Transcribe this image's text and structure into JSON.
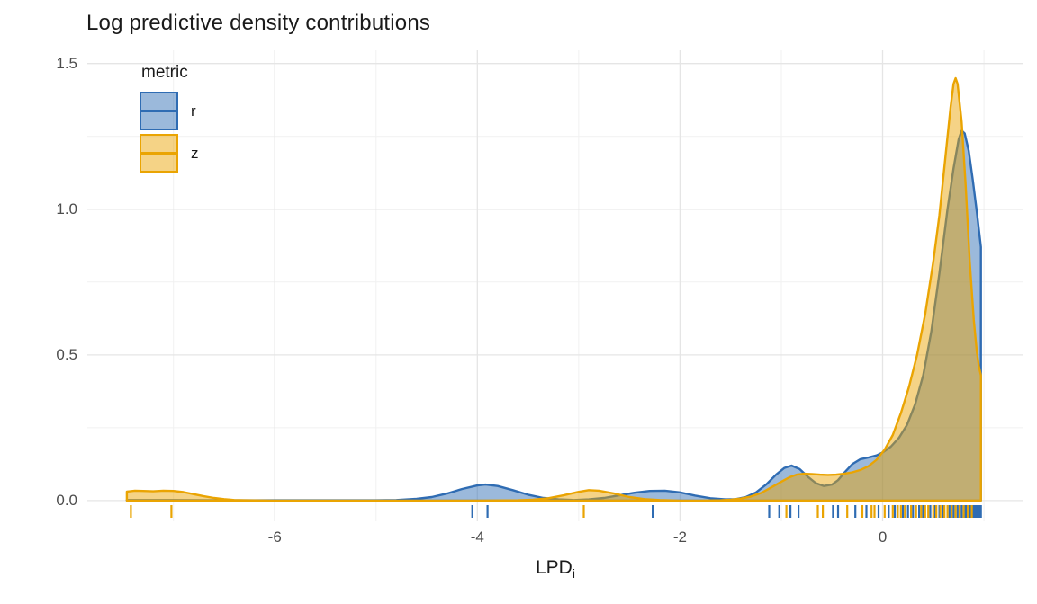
{
  "title": "Log predictive density contributions",
  "legend": {
    "title": "metric"
  },
  "x_axis_title": {
    "main": "LPD",
    "sub": "i"
  },
  "colors": {
    "background": "#ffffff",
    "title_text": "#1a1a1a",
    "axis_text": "#4d4d4d",
    "grid_major": "#e5e5e5",
    "grid_minor": "#f1f1f1",
    "series_r": "#2f6cb3",
    "series_z": "#eaa402"
  },
  "chart_data": {
    "type": "area",
    "subtype": "kernel-density-with-rug",
    "title": "Log predictive density contributions",
    "xlabel": "LPD_i",
    "ylabel": "",
    "legend_title": "metric",
    "legend_position": "top-left-inside",
    "grid": "on",
    "xlim": [
      -7.85,
      1.39
    ],
    "ylim": [
      -0.0712,
      1.5455
    ],
    "x_major_ticks": [
      -6,
      -4,
      -2,
      0
    ],
    "x_tick_labels": [
      "-6",
      "-4",
      "-2",
      "0"
    ],
    "x_minor_gridlines": [
      -7,
      -5,
      -3,
      -1,
      1
    ],
    "y_major_ticks": [
      0,
      0.5,
      1.0,
      1.5
    ],
    "y_tick_labels": [
      "0.0",
      "0.5",
      "1.0",
      "1.5"
    ],
    "y_minor_gridlines": [
      0.25,
      0.75,
      1.25
    ],
    "fill_opacity": 0.48,
    "stroke_width": 2.4,
    "series": [
      {
        "name": "r",
        "color": "#2f6cb3",
        "points": [
          [
            -7.46,
            0.002
          ],
          [
            -7.2,
            0.002
          ],
          [
            -7.0,
            0.002
          ],
          [
            -6.5,
            0.001
          ],
          [
            -6.0,
            0.001
          ],
          [
            -5.5,
            0.001
          ],
          [
            -5.0,
            0.001
          ],
          [
            -4.8,
            0.002
          ],
          [
            -4.6,
            0.006
          ],
          [
            -4.45,
            0.012
          ],
          [
            -4.3,
            0.024
          ],
          [
            -4.15,
            0.04
          ],
          [
            -4.0,
            0.052
          ],
          [
            -3.92,
            0.055
          ],
          [
            -3.8,
            0.05
          ],
          [
            -3.65,
            0.036
          ],
          [
            -3.5,
            0.02
          ],
          [
            -3.35,
            0.009
          ],
          [
            -3.2,
            0.004
          ],
          [
            -3.05,
            0.002
          ],
          [
            -2.9,
            0.004
          ],
          [
            -2.75,
            0.009
          ],
          [
            -2.6,
            0.018
          ],
          [
            -2.45,
            0.027
          ],
          [
            -2.3,
            0.033
          ],
          [
            -2.15,
            0.034
          ],
          [
            -2.0,
            0.028
          ],
          [
            -1.85,
            0.017
          ],
          [
            -1.7,
            0.008
          ],
          [
            -1.55,
            0.004
          ],
          [
            -1.45,
            0.005
          ],
          [
            -1.35,
            0.012
          ],
          [
            -1.25,
            0.028
          ],
          [
            -1.15,
            0.055
          ],
          [
            -1.05,
            0.09
          ],
          [
            -0.97,
            0.112
          ],
          [
            -0.9,
            0.12
          ],
          [
            -0.82,
            0.108
          ],
          [
            -0.74,
            0.082
          ],
          [
            -0.66,
            0.06
          ],
          [
            -0.58,
            0.05
          ],
          [
            -0.5,
            0.055
          ],
          [
            -0.44,
            0.07
          ],
          [
            -0.38,
            0.095
          ],
          [
            -0.3,
            0.125
          ],
          [
            -0.22,
            0.142
          ],
          [
            -0.14,
            0.148
          ],
          [
            -0.06,
            0.155
          ],
          [
            0.0,
            0.165
          ],
          [
            0.08,
            0.185
          ],
          [
            0.16,
            0.215
          ],
          [
            0.24,
            0.26
          ],
          [
            0.32,
            0.33
          ],
          [
            0.4,
            0.43
          ],
          [
            0.48,
            0.58
          ],
          [
            0.56,
            0.78
          ],
          [
            0.64,
            1.0
          ],
          [
            0.7,
            1.14
          ],
          [
            0.75,
            1.24
          ],
          [
            0.78,
            1.27
          ],
          [
            0.81,
            1.26
          ],
          [
            0.85,
            1.2
          ],
          [
            0.89,
            1.1
          ],
          [
            0.93,
            0.99
          ],
          [
            0.97,
            0.87
          ]
        ],
        "rug": [
          -4.05,
          -3.9,
          -2.27,
          -1.12,
          -1.02,
          -0.91,
          -0.83,
          -0.49,
          -0.44,
          -0.27,
          -0.16,
          -0.04,
          0.06,
          0.12,
          0.2,
          0.25,
          0.3,
          0.36,
          0.4,
          0.47,
          0.52,
          0.56,
          0.6,
          0.66,
          0.7,
          0.74,
          0.78,
          0.815,
          0.83,
          0.845,
          0.86,
          0.875,
          0.89,
          0.9,
          0.91,
          0.92,
          0.93,
          0.94,
          0.95,
          0.96,
          0.97
        ]
      },
      {
        "name": "z",
        "color": "#eaa402",
        "points": [
          [
            -7.46,
            0.031
          ],
          [
            -7.38,
            0.034
          ],
          [
            -7.3,
            0.033
          ],
          [
            -7.2,
            0.032
          ],
          [
            -7.1,
            0.034
          ],
          [
            -7.0,
            0.033
          ],
          [
            -6.9,
            0.029
          ],
          [
            -6.8,
            0.022
          ],
          [
            -6.7,
            0.015
          ],
          [
            -6.6,
            0.009
          ],
          [
            -6.5,
            0.005
          ],
          [
            -6.4,
            0.002
          ],
          [
            -6.3,
            0.001
          ],
          [
            -6.0,
            0.0
          ],
          [
            -5.0,
            0.0
          ],
          [
            -4.0,
            0.0
          ],
          [
            -3.6,
            0.001
          ],
          [
            -3.45,
            0.003
          ],
          [
            -3.3,
            0.008
          ],
          [
            -3.15,
            0.018
          ],
          [
            -3.0,
            0.03
          ],
          [
            -2.9,
            0.036
          ],
          [
            -2.8,
            0.034
          ],
          [
            -2.65,
            0.024
          ],
          [
            -2.5,
            0.012
          ],
          [
            -2.35,
            0.005
          ],
          [
            -2.2,
            0.002
          ],
          [
            -2.0,
            0.0
          ],
          [
            -1.8,
            0.0
          ],
          [
            -1.6,
            0.001
          ],
          [
            -1.5,
            0.003
          ],
          [
            -1.4,
            0.007
          ],
          [
            -1.3,
            0.014
          ],
          [
            -1.2,
            0.026
          ],
          [
            -1.1,
            0.045
          ],
          [
            -1.0,
            0.065
          ],
          [
            -0.92,
            0.08
          ],
          [
            -0.85,
            0.089
          ],
          [
            -0.78,
            0.092
          ],
          [
            -0.7,
            0.091
          ],
          [
            -0.62,
            0.089
          ],
          [
            -0.54,
            0.088
          ],
          [
            -0.46,
            0.089
          ],
          [
            -0.38,
            0.092
          ],
          [
            -0.3,
            0.097
          ],
          [
            -0.22,
            0.105
          ],
          [
            -0.14,
            0.118
          ],
          [
            -0.06,
            0.14
          ],
          [
            0.02,
            0.175
          ],
          [
            0.1,
            0.225
          ],
          [
            0.18,
            0.3
          ],
          [
            0.26,
            0.39
          ],
          [
            0.34,
            0.5
          ],
          [
            0.42,
            0.64
          ],
          [
            0.5,
            0.82
          ],
          [
            0.56,
            0.98
          ],
          [
            0.62,
            1.18
          ],
          [
            0.67,
            1.35
          ],
          [
            0.7,
            1.43
          ],
          [
            0.72,
            1.45
          ],
          [
            0.74,
            1.43
          ],
          [
            0.78,
            1.3
          ],
          [
            0.82,
            1.08
          ],
          [
            0.86,
            0.82
          ],
          [
            0.9,
            0.62
          ],
          [
            0.93,
            0.51
          ],
          [
            0.95,
            0.46
          ],
          [
            0.97,
            0.43
          ]
        ],
        "rug": [
          -7.42,
          -7.02,
          -2.95,
          -0.95,
          -0.64,
          -0.59,
          -0.35,
          -0.2,
          -0.11,
          -0.08,
          0.02,
          0.1,
          0.15,
          0.18,
          0.22,
          0.28,
          0.33,
          0.38,
          0.42,
          0.45,
          0.5,
          0.53,
          0.57,
          0.61,
          0.64,
          0.68,
          0.72,
          0.76,
          0.8,
          0.84,
          0.88
        ]
      }
    ]
  }
}
